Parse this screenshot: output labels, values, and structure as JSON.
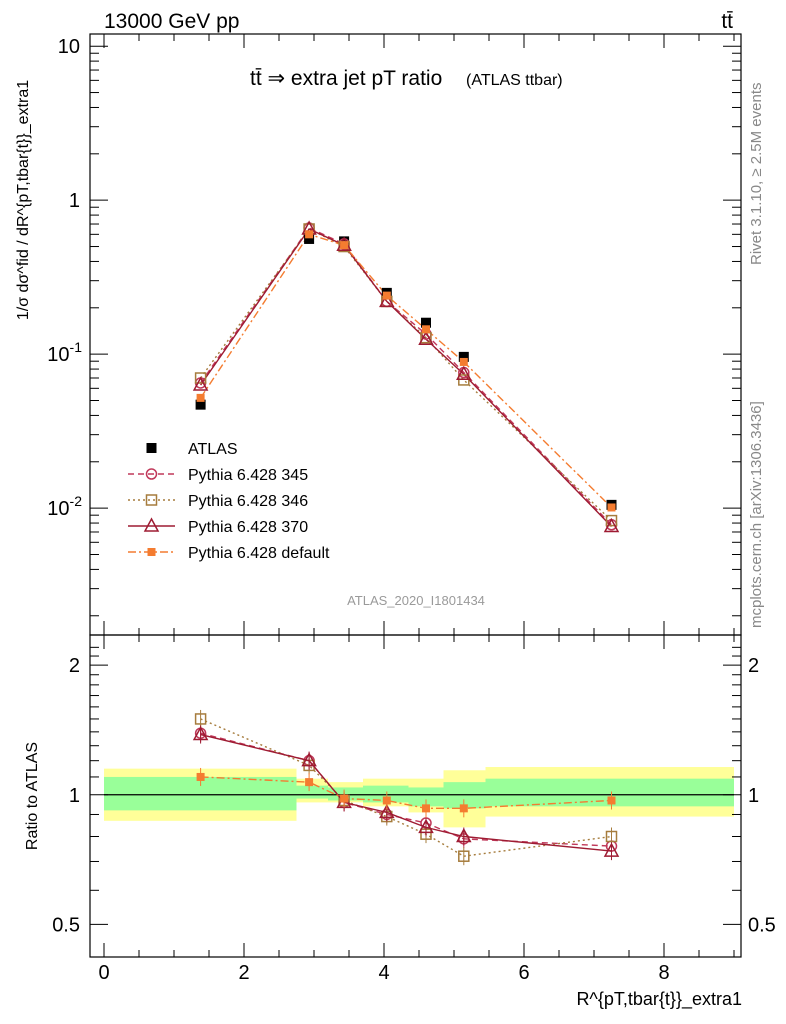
{
  "header": {
    "energy": "13000 GeV pp",
    "process": "tt̄"
  },
  "side_labels": {
    "rivet": "Rivet 3.1.10, ≥ 2.5M events",
    "mcplots": "mcplots.cern.ch [arXiv:1306.3436]"
  },
  "chart_data": [
    {
      "type": "line",
      "panel": "main",
      "title": "tt̄ ⇒ extra jet pT ratio",
      "title_suffix": "(ATLAS ttbar)",
      "watermark": "ATLAS_2020_I1801434",
      "ylabel": "1/σ dσ^fid / dR^{pT,tbar{t}}_extra1",
      "yscale": "log",
      "xlim": [
        -0.2,
        9.1
      ],
      "ylim": [
        0.0015,
        12
      ],
      "yticks": [
        {
          "value": 10,
          "label": "10"
        },
        {
          "value": 1,
          "label": "1"
        },
        {
          "value": 0.1,
          "label": "10^-1"
        },
        {
          "value": 0.01,
          "label": "10^-2"
        }
      ],
      "legend_position": "bottom-left",
      "series": [
        {
          "name": "ATLAS",
          "style": "data",
          "color": "#000000",
          "x": [
            1.38,
            2.93,
            3.43,
            4.04,
            4.6,
            5.14,
            7.25
          ],
          "y": [
            0.047,
            0.56,
            0.54,
            0.25,
            0.16,
            0.096,
            0.0105
          ]
        },
        {
          "name": "Pythia 6.428 345",
          "style": "dashed",
          "marker": "circle",
          "color": "#c0385a",
          "x": [
            1.38,
            2.93,
            3.43,
            4.04,
            4.6,
            5.14,
            7.25
          ],
          "y": [
            0.065,
            0.66,
            0.52,
            0.22,
            0.135,
            0.076,
            0.0078
          ]
        },
        {
          "name": "Pythia 6.428 346",
          "style": "dotted",
          "marker": "square",
          "color": "#a67c3d",
          "x": [
            1.38,
            2.93,
            3.43,
            4.04,
            4.6,
            5.14,
            7.25
          ],
          "y": [
            0.07,
            0.65,
            0.5,
            0.22,
            0.128,
            0.068,
            0.0083
          ]
        },
        {
          "name": "Pythia 6.428 370",
          "style": "solid",
          "marker": "triangle",
          "color": "#9e1b32",
          "x": [
            1.38,
            2.93,
            3.43,
            4.04,
            4.6,
            5.14,
            7.25
          ],
          "y": [
            0.063,
            0.65,
            0.51,
            0.22,
            0.125,
            0.074,
            0.0076
          ]
        },
        {
          "name": "Pythia 6.428 default",
          "style": "dashdot",
          "marker": "filled-square",
          "color": "#f47c30",
          "x": [
            1.38,
            2.93,
            3.43,
            4.04,
            4.6,
            5.14,
            7.25
          ],
          "y": [
            0.052,
            0.6,
            0.51,
            0.24,
            0.145,
            0.089,
            0.0101
          ]
        }
      ]
    },
    {
      "type": "line",
      "panel": "ratio",
      "ylabel": "Ratio to ATLAS",
      "xlabel": "R^{pT,tbar{t}}_extra1",
      "ylim": [
        0.42,
        2.35
      ],
      "yticks": [
        {
          "value": 0.5,
          "label": "0.5"
        },
        {
          "value": 1,
          "label": "1"
        },
        {
          "value": 2,
          "label": "2"
        }
      ],
      "xticks": [
        0,
        2,
        4,
        6,
        8
      ],
      "bins": [
        {
          "x0": 0.0,
          "x1": 2.75,
          "in_lo": 0.92,
          "in_hi": 1.1,
          "out_lo": 0.87,
          "out_hi": 1.15
        },
        {
          "x0": 2.75,
          "x1": 3.2,
          "in_lo": 0.98,
          "in_hi": 1.05,
          "out_lo": 0.96,
          "out_hi": 1.09
        },
        {
          "x0": 3.2,
          "x1": 3.7,
          "in_lo": 0.97,
          "in_hi": 1.04,
          "out_lo": 0.96,
          "out_hi": 1.07
        },
        {
          "x0": 3.7,
          "x1": 4.35,
          "in_lo": 0.96,
          "in_hi": 1.05,
          "out_lo": 0.94,
          "out_hi": 1.09
        },
        {
          "x0": 4.35,
          "x1": 4.85,
          "in_lo": 0.94,
          "in_hi": 1.04,
          "out_lo": 0.91,
          "out_hi": 1.09
        },
        {
          "x0": 4.85,
          "x1": 5.45,
          "in_lo": 0.93,
          "in_hi": 1.07,
          "out_lo": 0.84,
          "out_hi": 1.14
        },
        {
          "x0": 5.45,
          "x1": 9.0,
          "in_lo": 0.94,
          "in_hi": 1.09,
          "out_lo": 0.89,
          "out_hi": 1.16
        }
      ],
      "series": [
        {
          "name": "Pythia 6.428 345",
          "style": "dashed",
          "marker": "circle",
          "color": "#c0385a",
          "x": [
            1.38,
            2.93,
            3.43,
            4.04,
            4.6,
            5.14,
            7.25
          ],
          "y": [
            1.39,
            1.2,
            0.96,
            0.9,
            0.86,
            0.79,
            0.76
          ]
        },
        {
          "name": "Pythia 6.428 346",
          "style": "dotted",
          "marker": "square",
          "color": "#a67c3d",
          "x": [
            1.38,
            2.93,
            3.43,
            4.04,
            4.6,
            5.14,
            7.25
          ],
          "y": [
            1.5,
            1.17,
            0.97,
            0.89,
            0.81,
            0.72,
            0.8
          ]
        },
        {
          "name": "Pythia 6.428 370",
          "style": "solid",
          "marker": "triangle",
          "color": "#9e1b32",
          "x": [
            1.38,
            2.93,
            3.43,
            4.04,
            4.6,
            5.14,
            7.25
          ],
          "y": [
            1.38,
            1.2,
            0.96,
            0.91,
            0.84,
            0.8,
            0.74
          ]
        },
        {
          "name": "Pythia 6.428 default",
          "style": "dashdot",
          "marker": "filled-square",
          "color": "#f47c30",
          "x": [
            1.38,
            2.93,
            3.43,
            4.04,
            4.6,
            5.14,
            7.25
          ],
          "y": [
            1.1,
            1.07,
            0.98,
            0.97,
            0.93,
            0.93,
            0.97
          ]
        }
      ]
    }
  ]
}
